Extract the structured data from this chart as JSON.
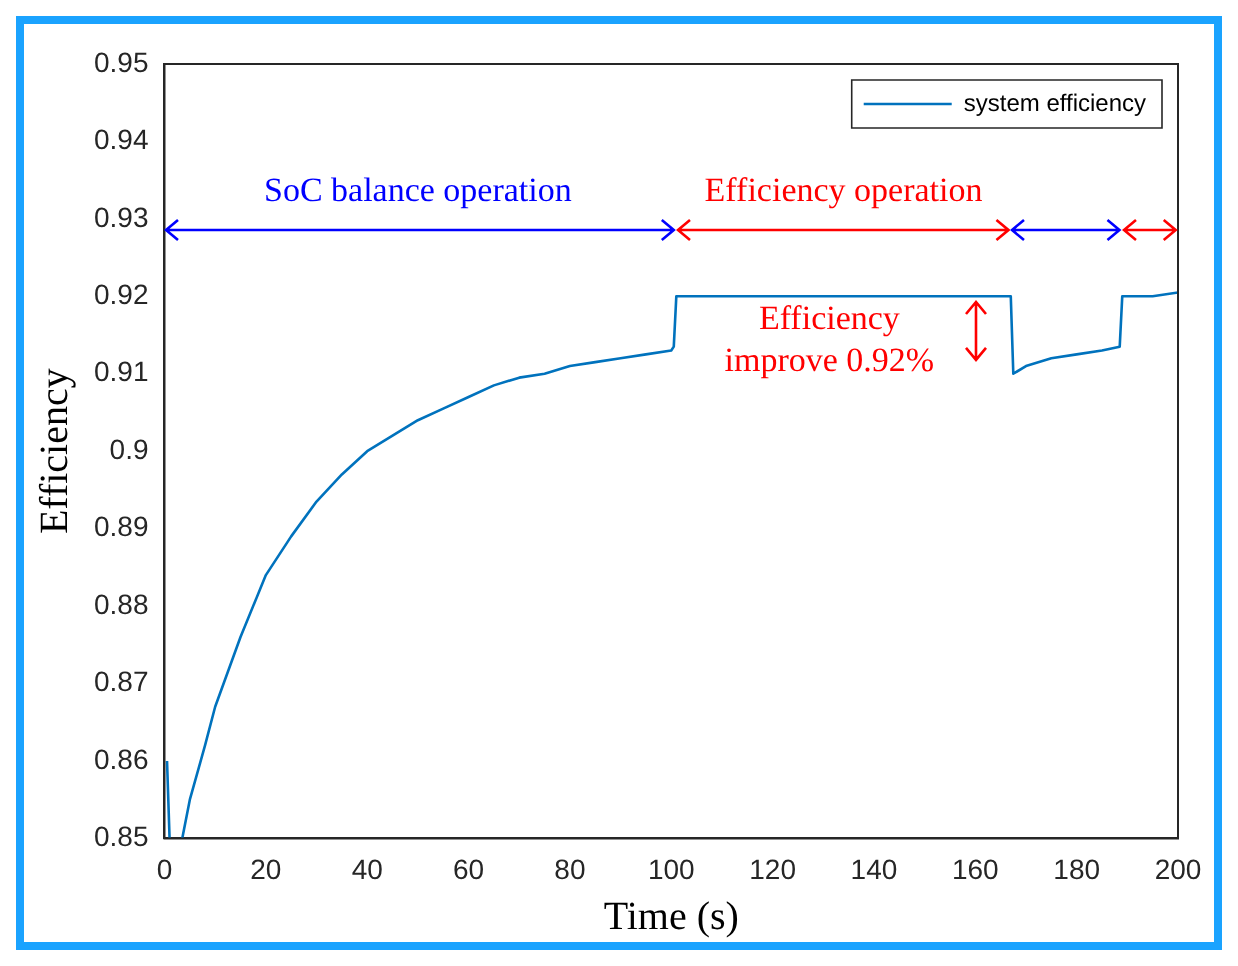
{
  "chart_data": {
    "type": "line",
    "xlabel": "Time (s)",
    "ylabel": "Efficiency",
    "xlim": [
      0,
      200
    ],
    "xticks": [
      0,
      20,
      40,
      60,
      80,
      100,
      120,
      140,
      160,
      180,
      200
    ],
    "ylim": [
      0.85,
      0.95
    ],
    "yticks": [
      0.85,
      0.86,
      0.87,
      0.88,
      0.89,
      0.9,
      0.91,
      0.92,
      0.93,
      0.94,
      0.95
    ],
    "grid": false,
    "legend": "top right",
    "marker": "none",
    "line_style": "solid",
    "series": [
      {
        "name": "system efficiency",
        "color": "#0072bd",
        "x": [
          0.5,
          1,
          2,
          3.5,
          5,
          8,
          10,
          15,
          20,
          25,
          30,
          35,
          40,
          45,
          50,
          55,
          60,
          65,
          70,
          75,
          80,
          85,
          90,
          95,
          100,
          100.5,
          101,
          110,
          120,
          130,
          140,
          150,
          160,
          167,
          167.5,
          170,
          175,
          180,
          185,
          188.5,
          189,
          195,
          200
        ],
        "values": [
          0.86,
          0.85,
          null,
          0.85,
          0.855,
          0.862,
          0.867,
          0.876,
          0.884,
          0.889,
          0.8935,
          0.897,
          0.9,
          0.902,
          0.904,
          0.9055,
          0.907,
          0.9085,
          0.9095,
          0.91,
          0.911,
          0.9115,
          0.912,
          0.9125,
          0.913,
          0.9135,
          0.92,
          0.92,
          0.92,
          0.92,
          0.92,
          0.92,
          0.92,
          0.92,
          0.91,
          0.911,
          0.912,
          0.9125,
          0.913,
          0.9135,
          0.92,
          0.92,
          0.9205
        ]
      }
    ],
    "annotations": [
      "SoC balance operation",
      "Efficiency operation",
      "Efficiency\nimprove 0.92%"
    ]
  }
}
